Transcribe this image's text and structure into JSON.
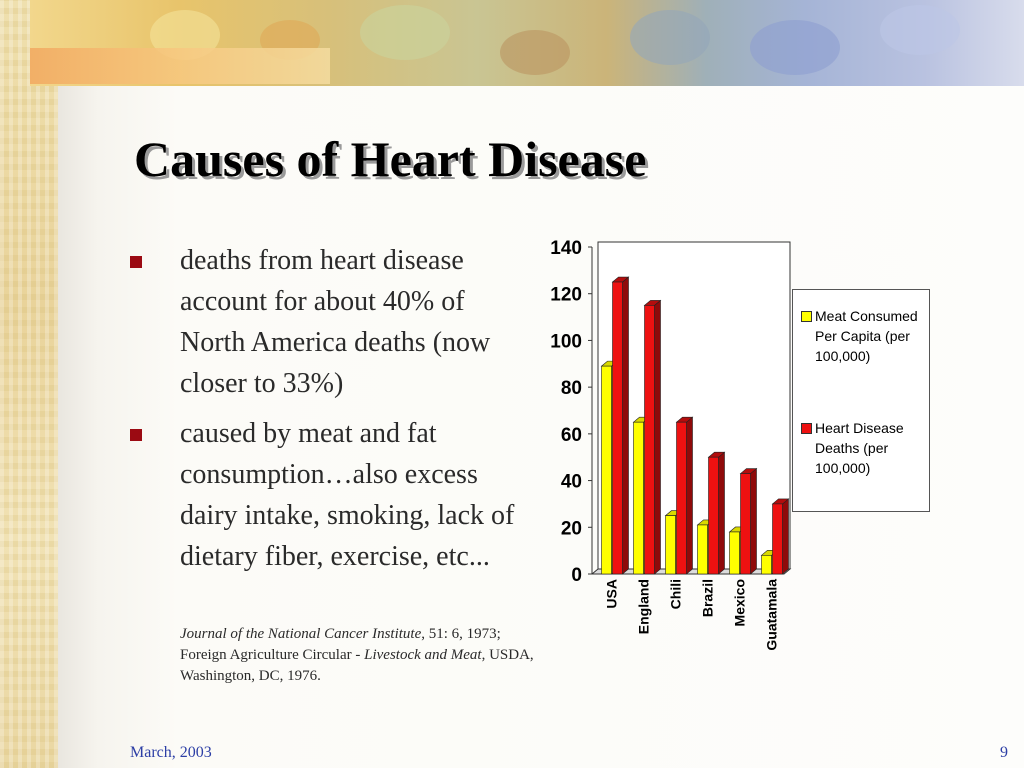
{
  "slide": {
    "title": "Causes of Heart Disease",
    "bullets": [
      "deaths from heart disease account for about 40% of North America deaths (now closer to 33%)",
      "caused by meat and fat consumption…also excess dairy intake, smoking, lack of dietary fiber, exercise, etc..."
    ],
    "citation": {
      "journal": "Journal of the National Cancer Institute",
      "journal_ref": ", 51: 6, 1973; Foreign Agriculture Circular - ",
      "circular_title": "Livestock and Meat",
      "publisher": ", USDA, Washington, DC, 1976."
    },
    "footer": {
      "date": "March, 2003",
      "page": "9"
    }
  },
  "colors": {
    "title_shadow": "#9a9a9a",
    "bullet_marker": "#9b0a12",
    "footer_text": "#2c3ea5"
  },
  "chart_data": {
    "type": "bar",
    "categories": [
      "USA",
      "England",
      "Chili",
      "Brazil",
      "Mexico",
      "Guatamala"
    ],
    "series": [
      {
        "name": "Meat Consumed Per Capita (per 100,000)",
        "values": [
          89,
          65,
          25,
          21,
          18,
          8
        ],
        "color": "#ffff00"
      },
      {
        "name": "Heart Disease Deaths (per 100,000)",
        "values": [
          125,
          115,
          65,
          50,
          43,
          30
        ],
        "color": "#ee1111"
      }
    ],
    "yticks": [
      0,
      20,
      40,
      60,
      80,
      100,
      120,
      140
    ],
    "ylim": [
      0,
      140
    ],
    "legend_position": "right",
    "style": "3d-bar"
  }
}
